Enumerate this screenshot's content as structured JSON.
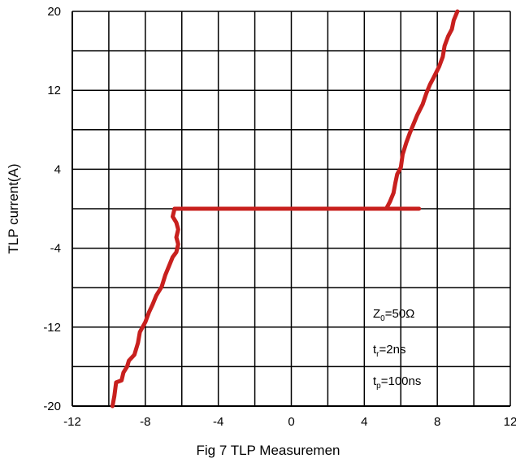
{
  "chart_data": {
    "type": "line",
    "title": "",
    "xlabel": "Fig 7 TLP Measuremen",
    "ylabel": "TLP current(A)",
    "xlim": [
      -12,
      12
    ],
    "ylim": [
      -20,
      20
    ],
    "x_ticks": [
      "-12",
      "-8",
      "-4",
      "0",
      "4",
      "8",
      "12"
    ],
    "y_ticks": [
      "20",
      "12",
      "4",
      "-4",
      "-12",
      "-20"
    ],
    "grid": true,
    "grid_step_x": 2,
    "grid_step_y": 4,
    "series": [
      {
        "color": "#c8201e",
        "points": [
          [
            -9.8,
            -20.0
          ],
          [
            -9.7,
            -19.0
          ],
          [
            -9.6,
            -17.6
          ],
          [
            -9.3,
            -17.4
          ],
          [
            -9.2,
            -16.6
          ],
          [
            -9.0,
            -16.0
          ],
          [
            -8.9,
            -15.4
          ],
          [
            -8.6,
            -14.8
          ],
          [
            -8.4,
            -13.6
          ],
          [
            -8.3,
            -12.5
          ],
          [
            -8.0,
            -11.5
          ],
          [
            -7.8,
            -10.5
          ],
          [
            -7.6,
            -9.7
          ],
          [
            -7.4,
            -8.8
          ],
          [
            -7.1,
            -7.9
          ],
          [
            -6.9,
            -6.7
          ],
          [
            -6.7,
            -5.8
          ],
          [
            -6.5,
            -4.9
          ],
          [
            -6.3,
            -4.4
          ],
          [
            -6.2,
            -3.6
          ],
          [
            -6.3,
            -2.9
          ],
          [
            -6.2,
            -2.1
          ],
          [
            -6.3,
            -1.4
          ],
          [
            -6.5,
            -0.8
          ],
          [
            -6.4,
            0.0
          ],
          [
            7.0,
            0.0
          ]
        ]
      },
      {
        "color": "#c8201e",
        "points": [
          [
            5.2,
            0.0
          ],
          [
            5.4,
            0.7
          ],
          [
            5.6,
            1.6
          ],
          [
            5.7,
            2.6
          ],
          [
            5.8,
            3.5
          ],
          [
            6.0,
            4.2
          ],
          [
            6.1,
            5.5
          ],
          [
            6.3,
            6.7
          ],
          [
            6.5,
            7.7
          ],
          [
            6.7,
            8.6
          ],
          [
            6.9,
            9.5
          ],
          [
            7.2,
            10.6
          ],
          [
            7.4,
            11.7
          ],
          [
            7.6,
            12.6
          ],
          [
            7.8,
            13.3
          ],
          [
            8.1,
            14.4
          ],
          [
            8.3,
            15.4
          ],
          [
            8.4,
            16.5
          ],
          [
            8.6,
            17.5
          ],
          [
            8.8,
            18.2
          ],
          [
            8.9,
            19.1
          ],
          [
            9.1,
            20.0
          ]
        ]
      }
    ],
    "annotations": {
      "z0": {
        "main": "Z",
        "sub": "0",
        "rest": "=50Ω"
      },
      "tr": {
        "main": "t",
        "sub": "r",
        "rest": "=2ns"
      },
      "tp": {
        "main": "t",
        "sub": "p",
        "rest": "=100ns"
      }
    }
  }
}
